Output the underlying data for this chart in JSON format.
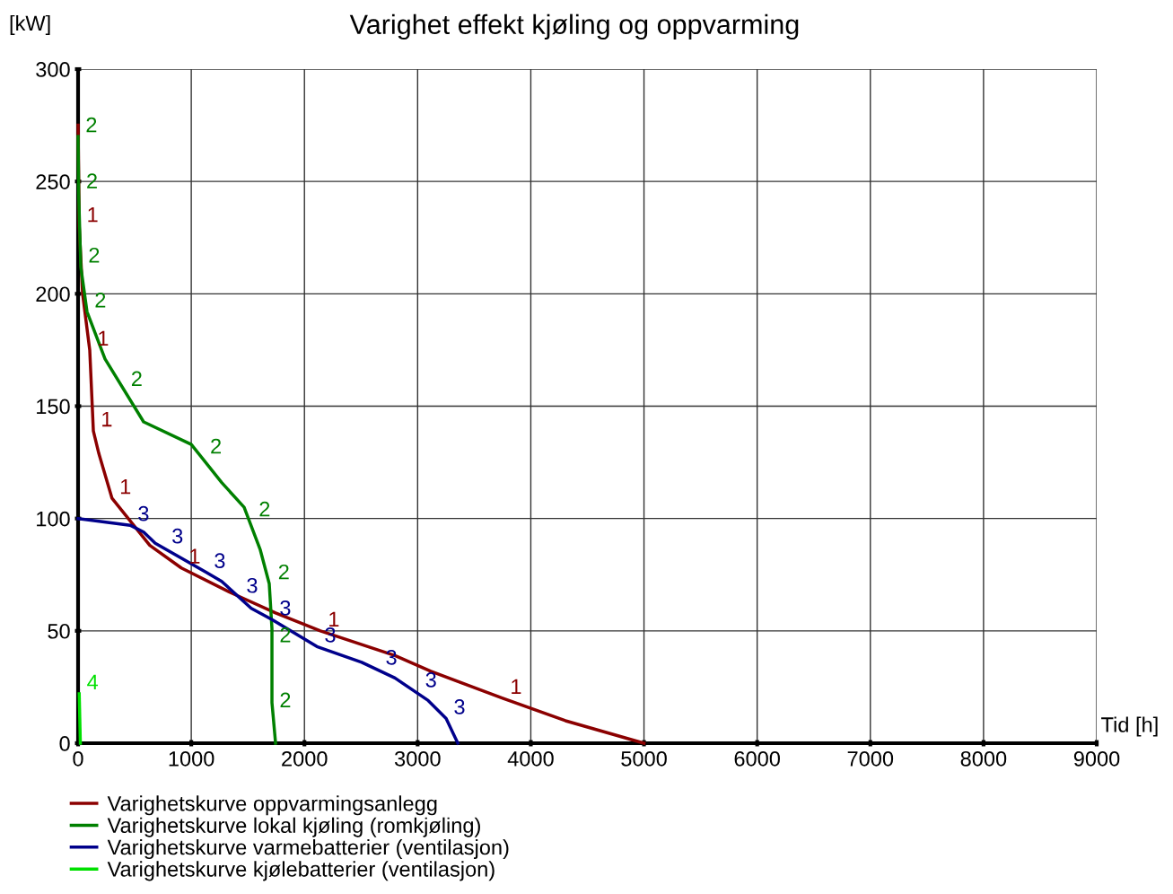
{
  "chart_data": {
    "type": "line",
    "title": "Varighet effekt kjøling og oppvarming",
    "xlabel": "Tid [h]",
    "ylabel": "[kW]",
    "xlim": [
      0,
      9000
    ],
    "ylim": [
      0,
      300
    ],
    "xticks": [
      0,
      1000,
      2000,
      3000,
      4000,
      5000,
      6000,
      7000,
      8000,
      9000
    ],
    "yticks": [
      0,
      50,
      100,
      150,
      200,
      250,
      300
    ],
    "grid": true,
    "legend": "bottom",
    "line_style": "solid",
    "series": [
      {
        "name": "Varighetskurve oppvarmingsanlegg",
        "color": "#8b0000",
        "x": [
          0,
          10,
          40,
          103,
          135,
          183,
          300,
          634,
          912,
          1348,
          1745,
          2141,
          2800,
          3117,
          3751,
          4306,
          5000
        ],
        "values": [
          275,
          230,
          200,
          175,
          139,
          129,
          109,
          88,
          78,
          67,
          58,
          50,
          39,
          32,
          20,
          10,
          0
        ]
      },
      {
        "name": "Varighetskurve lokal kjøling (romkjøling)",
        "color": "#008000",
        "x": [
          0,
          5,
          24,
          79,
          238,
          579,
          1000,
          1269,
          1467,
          1610,
          1689,
          1713,
          1713,
          1745
        ],
        "values": [
          270,
          245,
          212,
          192,
          171,
          143,
          133,
          116,
          105,
          86,
          71,
          51,
          18,
          0
        ]
      },
      {
        "name": "Varighetskurve varmebatterier (ventilasjon)",
        "color": "#00008b",
        "x": [
          0,
          460,
          579,
          682,
          1134,
          1269,
          1530,
          1713,
          2110,
          2506,
          2800,
          3093,
          3252,
          3355
        ],
        "values": [
          100,
          97,
          94,
          89,
          76,
          72,
          60,
          55,
          43,
          36,
          29,
          19,
          11,
          0
        ]
      },
      {
        "name": "Varighetskurve kjølebatterier (ventilasjon)",
        "color": "#00e000",
        "x": [
          10,
          20
        ],
        "values": [
          22,
          0
        ]
      }
    ],
    "annotations": [
      {
        "text": "1",
        "x": 10,
        "y": 230
      },
      {
        "text": "1",
        "x": 103,
        "y": 175
      },
      {
        "text": "1",
        "x": 135,
        "y": 139
      },
      {
        "text": "1",
        "x": 300,
        "y": 109
      },
      {
        "text": "1",
        "x": 912,
        "y": 78
      },
      {
        "text": "1",
        "x": 2141,
        "y": 50
      },
      {
        "text": "1",
        "x": 3751,
        "y": 20
      },
      {
        "text": "2",
        "x": 0,
        "y": 270
      },
      {
        "text": "2",
        "x": 5,
        "y": 245
      },
      {
        "text": "2",
        "x": 24,
        "y": 212
      },
      {
        "text": "2",
        "x": 79,
        "y": 192
      },
      {
        "text": "2",
        "x": 400,
        "y": 157
      },
      {
        "text": "2",
        "x": 1100,
        "y": 127
      },
      {
        "text": "2",
        "x": 1530,
        "y": 99
      },
      {
        "text": "2",
        "x": 1700,
        "y": 71
      },
      {
        "text": "2",
        "x": 1713,
        "y": 43
      },
      {
        "text": "2",
        "x": 1713,
        "y": 14
      },
      {
        "text": "3",
        "x": 460,
        "y": 97
      },
      {
        "text": "3",
        "x": 760,
        "y": 87
      },
      {
        "text": "3",
        "x": 1134,
        "y": 76
      },
      {
        "text": "3",
        "x": 1420,
        "y": 65
      },
      {
        "text": "3",
        "x": 1713,
        "y": 55
      },
      {
        "text": "3",
        "x": 2110,
        "y": 43
      },
      {
        "text": "3",
        "x": 2650,
        "y": 33
      },
      {
        "text": "3",
        "x": 3000,
        "y": 23
      },
      {
        "text": "3",
        "x": 3252,
        "y": 11
      },
      {
        "text": "4",
        "x": 10,
        "y": 22
      }
    ]
  }
}
